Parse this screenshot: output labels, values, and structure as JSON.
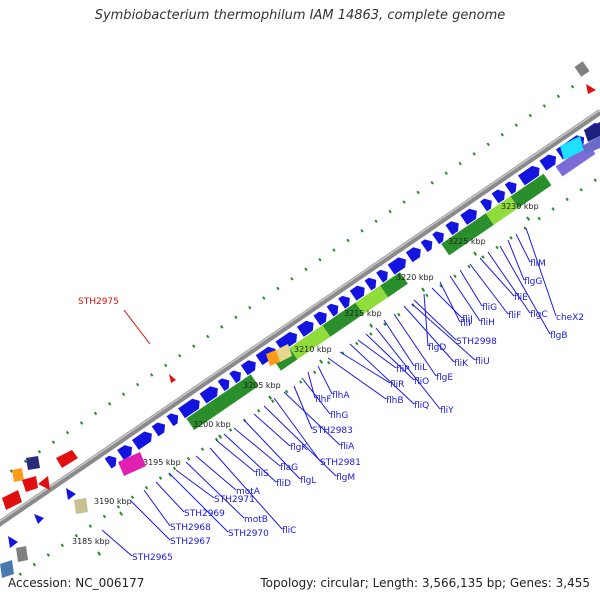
{
  "title": "Symbiobacterium thermophilum IAM 14863, complete genome",
  "footer": {
    "accession": "Accession: NC_006177",
    "summary": "Topology: circular; Length: 3,566,135 bp; Genes: 3,455"
  },
  "colors": {
    "backbone": "#8a8a8a",
    "gene_blue": "#1414e0",
    "gene_green": "#2a8f2a",
    "gene_lightgreen": "#8fdc3a",
    "label_blue": "#1a1ae6",
    "label_red": "#e01010",
    "tick_green": "#2a8a2a"
  },
  "scale_labels": [
    "3185 kbp",
    "3190 kbp",
    "3195 kbp",
    "3200 kbp",
    "3205 kbp",
    "3210 kbp",
    "3215 kbp",
    "3220 kbp",
    "3225 kbp",
    "3230 kbp"
  ],
  "highlighted_gene": "STH2975",
  "gene_labels": [
    "STH2965",
    "STH2967",
    "STH2968",
    "STH2969",
    "STH2970",
    "STH2971",
    "motB",
    "motA",
    "fliC",
    "fliS",
    "fliD",
    "flaG",
    "flgL",
    "flgK",
    "flgM",
    "STH2981",
    "fliA",
    "STH2983",
    "flhG",
    "flhF",
    "flhA",
    "flhB",
    "fliR",
    "fliQ",
    "fliP",
    "fliO",
    "fliY",
    "fliL",
    "flgE",
    "fliK",
    "STH2998",
    "flgD",
    "fliJ",
    "fliI",
    "fliH",
    "fliG",
    "fliF",
    "fliE",
    "flgC",
    "flgB",
    "flgG",
    "fliM",
    "cheX2",
    "fliU"
  ]
}
